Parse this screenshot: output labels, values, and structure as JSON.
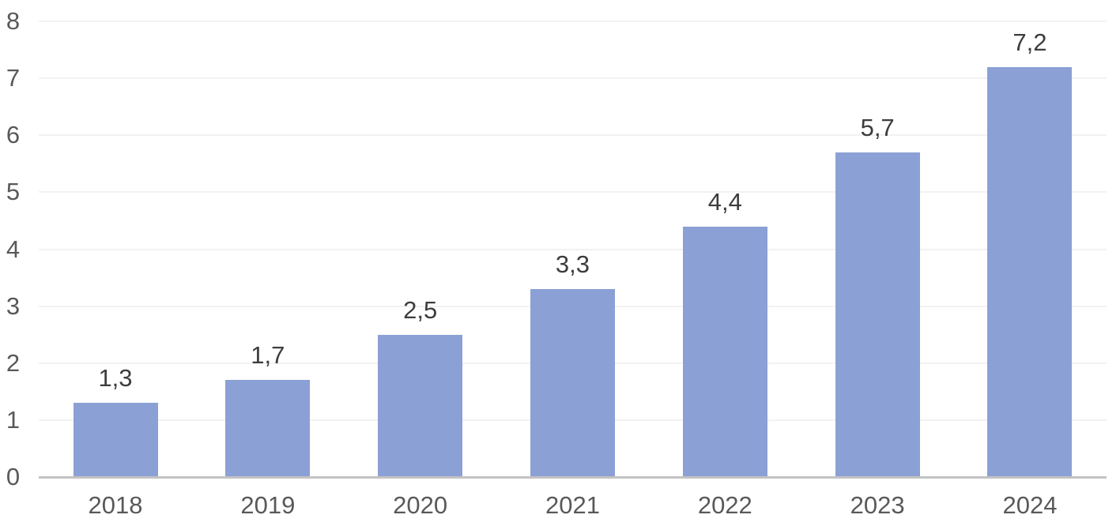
{
  "chart_data": {
    "type": "bar",
    "title": "",
    "xlabel": "",
    "ylabel": "",
    "categories": [
      "2018",
      "2019",
      "2020",
      "2021",
      "2022",
      "2023",
      "2024"
    ],
    "values": [
      1.3,
      1.7,
      2.5,
      3.3,
      4.4,
      5.7,
      7.2
    ],
    "value_labels": [
      "1,3",
      "1,7",
      "2,5",
      "3,3",
      "4,4",
      "5,7",
      "7,2"
    ],
    "ylim": [
      0,
      8
    ],
    "ytick_interval": 1,
    "ytick_labels": [
      "0",
      "1",
      "2",
      "3",
      "4",
      "5",
      "6",
      "7",
      "8"
    ],
    "grid": true,
    "legend_position": "none",
    "decimal_separator": ",",
    "colors": {
      "bar_fill": "#8BA0D4",
      "axis_line": "#C3C3C3",
      "gridline": "#F2F2F2",
      "tick_label": "#595959",
      "data_label": "#3D3D3D",
      "background": "#FFFFFF"
    }
  }
}
